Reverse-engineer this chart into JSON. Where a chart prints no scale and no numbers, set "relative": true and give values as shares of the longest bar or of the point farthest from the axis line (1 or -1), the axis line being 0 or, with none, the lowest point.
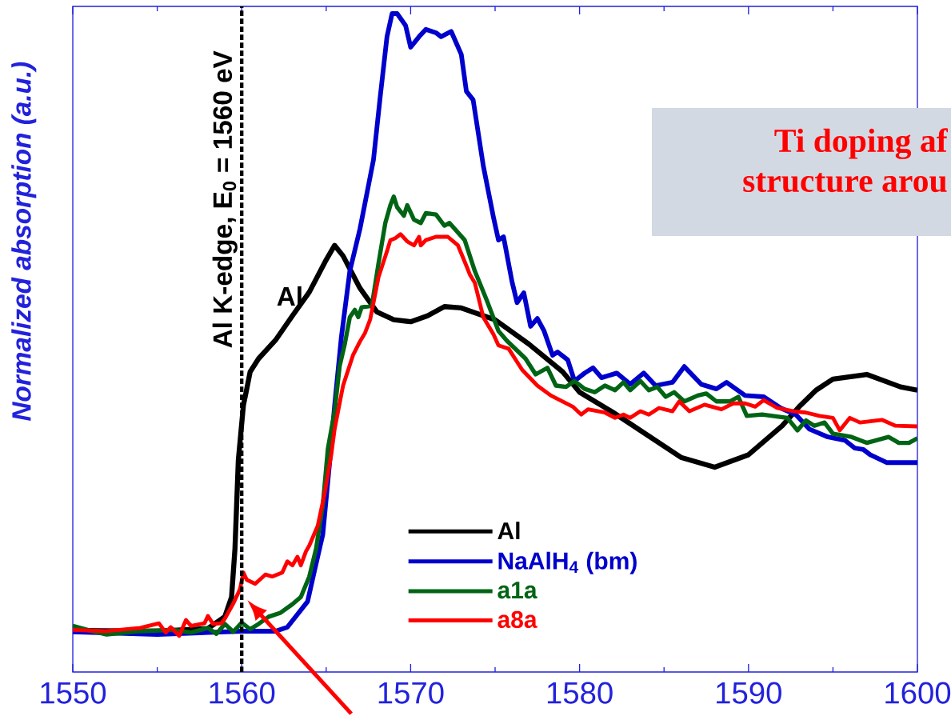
{
  "chart_data": {
    "type": "line",
    "relative": true,
    "ylabel": "Normalized absorption (a.u.)",
    "xlim": [
      1550,
      1600
    ],
    "xticks": [
      1550,
      1560,
      1570,
      1580,
      1590,
      1600
    ],
    "legend": "bottom",
    "line_style": "solid",
    "ref_lines": [
      {
        "axis": "x",
        "value": 1560,
        "label": "Al K-edge, E$_{0}$ = 1560 eV",
        "color": "#000000",
        "line_style": "dashed"
      }
    ],
    "annotations": [
      "Al",
      "Ti doping af",
      "structure arou"
    ],
    "series": [
      {
        "name": "Al",
        "color": "#000000",
        "x": [
          1550,
          1555,
          1558,
          1559,
          1559.4,
          1559.6,
          1559.8,
          1560.1,
          1560.3,
          1560.5,
          1561,
          1562,
          1563,
          1564,
          1565,
          1565.5,
          1566,
          1567,
          1568,
          1569,
          1570,
          1571,
          1572,
          1573,
          1575,
          1577,
          1579,
          1580,
          1582,
          1584,
          1586,
          1588,
          1590,
          1592,
          1593,
          1594,
          1595,
          1597,
          1599,
          1600
        ],
        "values": [
          0.063,
          0.062,
          0.066,
          0.084,
          0.114,
          0.187,
          0.322,
          0.405,
          0.43,
          0.456,
          0.476,
          0.504,
          0.541,
          0.577,
          0.626,
          0.648,
          0.632,
          0.583,
          0.547,
          0.535,
          0.532,
          0.541,
          0.555,
          0.553,
          0.535,
          0.498,
          0.456,
          0.425,
          0.394,
          0.36,
          0.326,
          0.311,
          0.33,
          0.374,
          0.403,
          0.428,
          0.445,
          0.452,
          0.433,
          0.428
        ]
      },
      {
        "name": "NaAlH$_{4}$ (bm)",
        "color": "#0000cc",
        "x": [
          1550,
          1555,
          1558,
          1560,
          1562,
          1562.7,
          1563.9,
          1564.3,
          1564.8,
          1565.2,
          1565.5,
          1565.9,
          1566.4,
          1567,
          1567.8,
          1568.2,
          1568.6,
          1568.9,
          1569.2,
          1569.7,
          1570,
          1570.5,
          1570.9,
          1571.5,
          1571.8,
          1572.4,
          1573,
          1573.3,
          1573.7,
          1574.3,
          1574.9,
          1575.2,
          1575.5,
          1576,
          1576.3,
          1576.7,
          1577.1,
          1577.5,
          1577.9,
          1578.4,
          1578.7,
          1579.3,
          1579.7,
          1580.3,
          1580.8,
          1581.3,
          1582.2,
          1583,
          1583.8,
          1584.5,
          1585.5,
          1586.2,
          1587.2,
          1588.1,
          1588.7,
          1589.8,
          1590.9,
          1591.9,
          1592.8,
          1593.6,
          1594.7,
          1595.7,
          1596.3,
          1596.8,
          1597.2,
          1598.2,
          1600
        ],
        "values": [
          0.061,
          0.057,
          0.06,
          0.062,
          0.062,
          0.068,
          0.107,
          0.153,
          0.209,
          0.317,
          0.405,
          0.509,
          0.609,
          0.673,
          0.778,
          0.874,
          0.965,
          1,
          1,
          0.982,
          0.949,
          0.965,
          0.976,
          0.971,
          0.965,
          0.973,
          0.938,
          0.882,
          0.869,
          0.769,
          0.691,
          0.656,
          0.661,
          0.593,
          0.561,
          0.576,
          0.525,
          0.537,
          0.518,
          0.481,
          0.486,
          0.474,
          0.442,
          0.454,
          0.462,
          0.447,
          0.454,
          0.437,
          0.454,
          0.435,
          0.44,
          0.464,
          0.437,
          0.43,
          0.44,
          0.42,
          0.418,
          0.401,
          0.391,
          0.369,
          0.357,
          0.352,
          0.34,
          0.338,
          0.33,
          0.318,
          0.318
        ]
      },
      {
        "name": "a1a",
        "color": "#006414",
        "x": [
          1550,
          1551,
          1552,
          1554,
          1556,
          1557,
          1558,
          1558.5,
          1559,
          1559.5,
          1560,
          1560.5,
          1561,
          1561.6,
          1562.3,
          1563,
          1563.5,
          1564,
          1564.4,
          1564.8,
          1565.1,
          1565.5,
          1565.8,
          1566.1,
          1566.4,
          1566.7,
          1566.9,
          1567.1,
          1567.7,
          1568.1,
          1568.5,
          1568.8,
          1569,
          1569.2,
          1569.6,
          1569.8,
          1570.2,
          1570.6,
          1570.9,
          1571.5,
          1572,
          1572.3,
          1573.2,
          1573.8,
          1574.5,
          1575.2,
          1575.7,
          1576.8,
          1577.4,
          1578.1,
          1578.6,
          1579.2,
          1579.7,
          1580.3,
          1580.9,
          1581.5,
          1582.1,
          1582.6,
          1583,
          1583.6,
          1584.1,
          1584.6,
          1585.1,
          1585.6,
          1586.2,
          1587,
          1587.5,
          1588.1,
          1588.9,
          1589.4,
          1589.9,
          1590.8,
          1592.3,
          1592.9,
          1593.4,
          1593.9,
          1594.5,
          1595,
          1596.1,
          1597,
          1598.3,
          1598.9,
          1599.5,
          1600
        ],
        "values": [
          0.07,
          0.063,
          0.057,
          0.062,
          0.064,
          0.06,
          0.067,
          0.058,
          0.073,
          0.061,
          0.075,
          0.065,
          0.073,
          0.084,
          0.09,
          0.103,
          0.114,
          0.145,
          0.187,
          0.253,
          0.339,
          0.396,
          0.465,
          0.498,
          0.539,
          0.55,
          0.539,
          0.554,
          0.556,
          0.621,
          0.682,
          0.709,
          0.722,
          0.706,
          0.693,
          0.709,
          0.687,
          0.682,
          0.697,
          0.695,
          0.678,
          0.682,
          0.656,
          0.609,
          0.565,
          0.518,
          0.503,
          0.476,
          0.452,
          0.462,
          0.435,
          0.433,
          0.442,
          0.43,
          0.425,
          0.435,
          0.428,
          0.44,
          0.428,
          0.442,
          0.428,
          0.433,
          0.418,
          0.425,
          0.411,
          0.42,
          0.423,
          0.411,
          0.411,
          0.418,
          0.389,
          0.391,
          0.386,
          0.367,
          0.382,
          0.374,
          0.379,
          0.362,
          0.357,
          0.348,
          0.357,
          0.348,
          0.348,
          0.355
        ]
      },
      {
        "name": "a8a",
        "color": "#ff0000",
        "x": [
          1550,
          1552,
          1554,
          1555.1,
          1555.5,
          1555.8,
          1556.3,
          1556.7,
          1557,
          1557.8,
          1558,
          1558.3,
          1558.8,
          1559,
          1559.5,
          1559.9,
          1560.1,
          1560.3,
          1560.8,
          1561.4,
          1561.8,
          1562.4,
          1562.7,
          1563,
          1563.3,
          1563.5,
          1563.8,
          1564,
          1564.5,
          1564.9,
          1565.3,
          1565.5,
          1566,
          1566.6,
          1567,
          1567.3,
          1567.6,
          1568.1,
          1568.6,
          1568.8,
          1569.1,
          1569.4,
          1569.8,
          1570.2,
          1570.5,
          1570.6,
          1570.9,
          1571.5,
          1572.2,
          1572.8,
          1573.3,
          1573.5,
          1573.8,
          1574.3,
          1574.9,
          1575.2,
          1575.8,
          1576.6,
          1577.5,
          1578.3,
          1579.6,
          1580.1,
          1580.5,
          1581.5,
          1582.1,
          1582.6,
          1583,
          1583.6,
          1584.1,
          1584.7,
          1585.5,
          1585.9,
          1586.5,
          1587.4,
          1588.4,
          1589.1,
          1589.8,
          1590.4,
          1590.9,
          1591.7,
          1592.7,
          1593.4,
          1594.2,
          1595,
          1595.4,
          1596,
          1596.6,
          1597.9,
          1598.7,
          1600
        ],
        "values": [
          0.064,
          0.062,
          0.067,
          0.074,
          0.06,
          0.068,
          0.055,
          0.079,
          0.07,
          0.074,
          0.085,
          0.073,
          0.074,
          0.081,
          0.104,
          0.126,
          0.151,
          0.14,
          0.134,
          0.148,
          0.145,
          0.151,
          0.168,
          0.162,
          0.175,
          0.162,
          0.183,
          0.192,
          0.222,
          0.27,
          0.33,
          0.369,
          0.435,
          0.482,
          0.502,
          0.515,
          0.535,
          0.6,
          0.639,
          0.656,
          0.659,
          0.665,
          0.654,
          0.648,
          0.661,
          0.648,
          0.656,
          0.661,
          0.661,
          0.648,
          0.617,
          0.604,
          0.591,
          0.539,
          0.513,
          0.496,
          0.491,
          0.459,
          0.435,
          0.42,
          0.403,
          0.391,
          0.399,
          0.394,
          0.386,
          0.391,
          0.386,
          0.396,
          0.391,
          0.401,
          0.396,
          0.411,
          0.396,
          0.406,
          0.399,
          0.408,
          0.408,
          0.403,
          0.413,
          0.401,
          0.396,
          0.394,
          0.389,
          0.386,
          0.367,
          0.386,
          0.379,
          0.383,
          0.374,
          0.373
        ]
      }
    ]
  }
}
